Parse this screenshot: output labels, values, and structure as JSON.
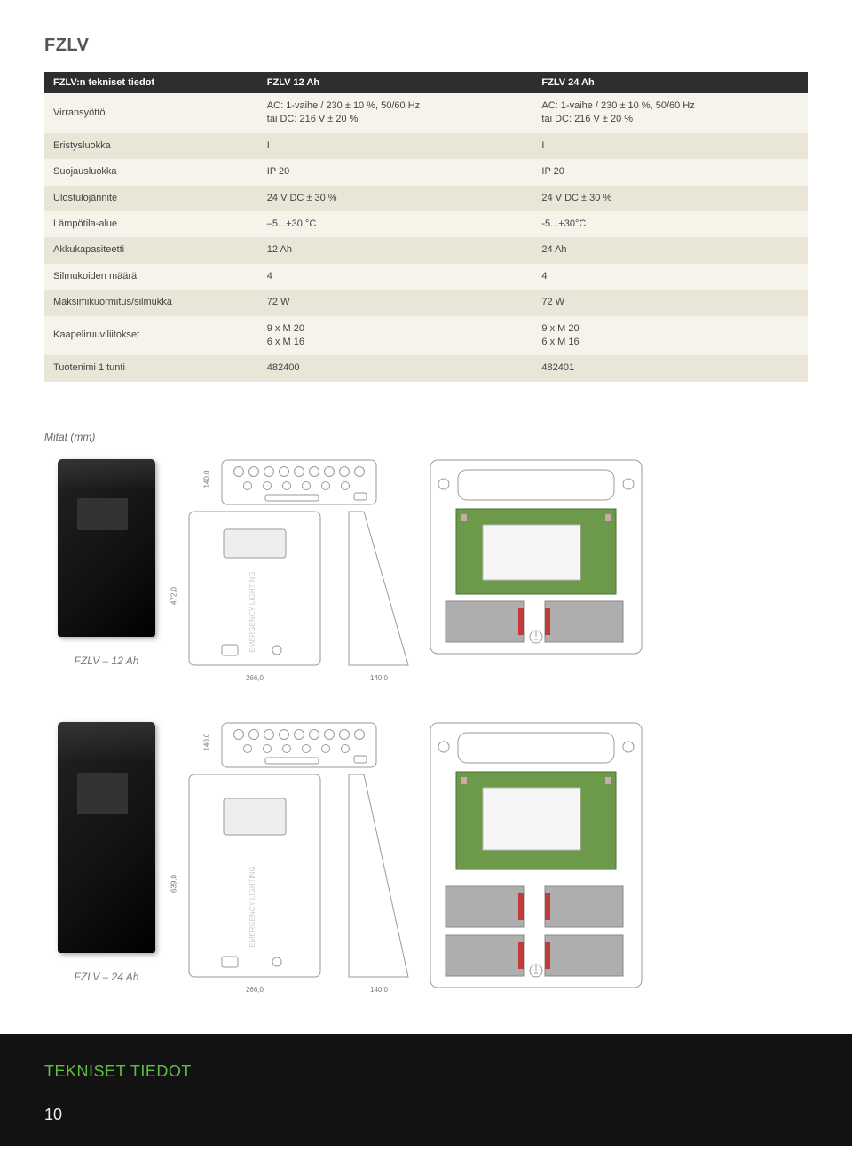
{
  "title": "FZLV",
  "table": {
    "headers": [
      "FZLV:n tekniset tiedot",
      "FZLV 12 Ah",
      "FZLV 24 Ah"
    ],
    "rows": [
      {
        "label": "Virransyöttö",
        "c1": "AC: 1-vaihe / 230 ± 10 %, 50/60 Hz\ntai DC: 216 V ± 20 %",
        "c2": "AC: 1-vaihe / 230 ± 10 %, 50/60 Hz\ntai DC: 216 V ± 20 %"
      },
      {
        "label": "Eristysluokka",
        "c1": "I",
        "c2": "I"
      },
      {
        "label": "Suojausluokka",
        "c1": "IP 20",
        "c2": "IP 20"
      },
      {
        "label": "Ulostulojännite",
        "c1": "24 V DC ± 30 %",
        "c2": "24 V DC ± 30 %"
      },
      {
        "label": "Lämpötila-alue",
        "c1": "–5...+30 °C",
        "c2": "-5...+30°C"
      },
      {
        "label": "Akkukapasiteetti",
        "c1": "12 Ah",
        "c2": "24 Ah"
      },
      {
        "label": "Silmukoiden määrä",
        "c1": "4",
        "c2": "4"
      },
      {
        "label": "Maksimikuormitus/silmukka",
        "c1": "72 W",
        "c2": "72 W"
      },
      {
        "label": "Kaapeliruuviliitokset",
        "c1": "9 x M 20\n6 x M 16",
        "c2": "9 x M 20\n6 x M 16"
      },
      {
        "label": "Tuotenimi                    1 tunti",
        "c1": "482400",
        "c2": "482401"
      }
    ]
  },
  "mitat_label": "Mitat (mm)",
  "products": [
    {
      "name": "FZLV – 12 Ah",
      "top_h": "140,0",
      "front_h": "472,0",
      "front_w": "266,0",
      "side_w": "140,0"
    },
    {
      "name": "FZLV – 24 Ah",
      "top_h": "140,0",
      "front_h": "639,0",
      "front_w": "266,0",
      "side_w": "140,0"
    }
  ],
  "colors": {
    "pcb_green": "#6c9a4a",
    "pcb_border": "#4a7030",
    "line": "#9a9a9a",
    "drawing_fill": "#eeeeee",
    "battery": "#aeaeae",
    "battery_red": "#c03a3a"
  },
  "footer": {
    "title": "TEKNISET TIEDOT",
    "page": "10"
  }
}
